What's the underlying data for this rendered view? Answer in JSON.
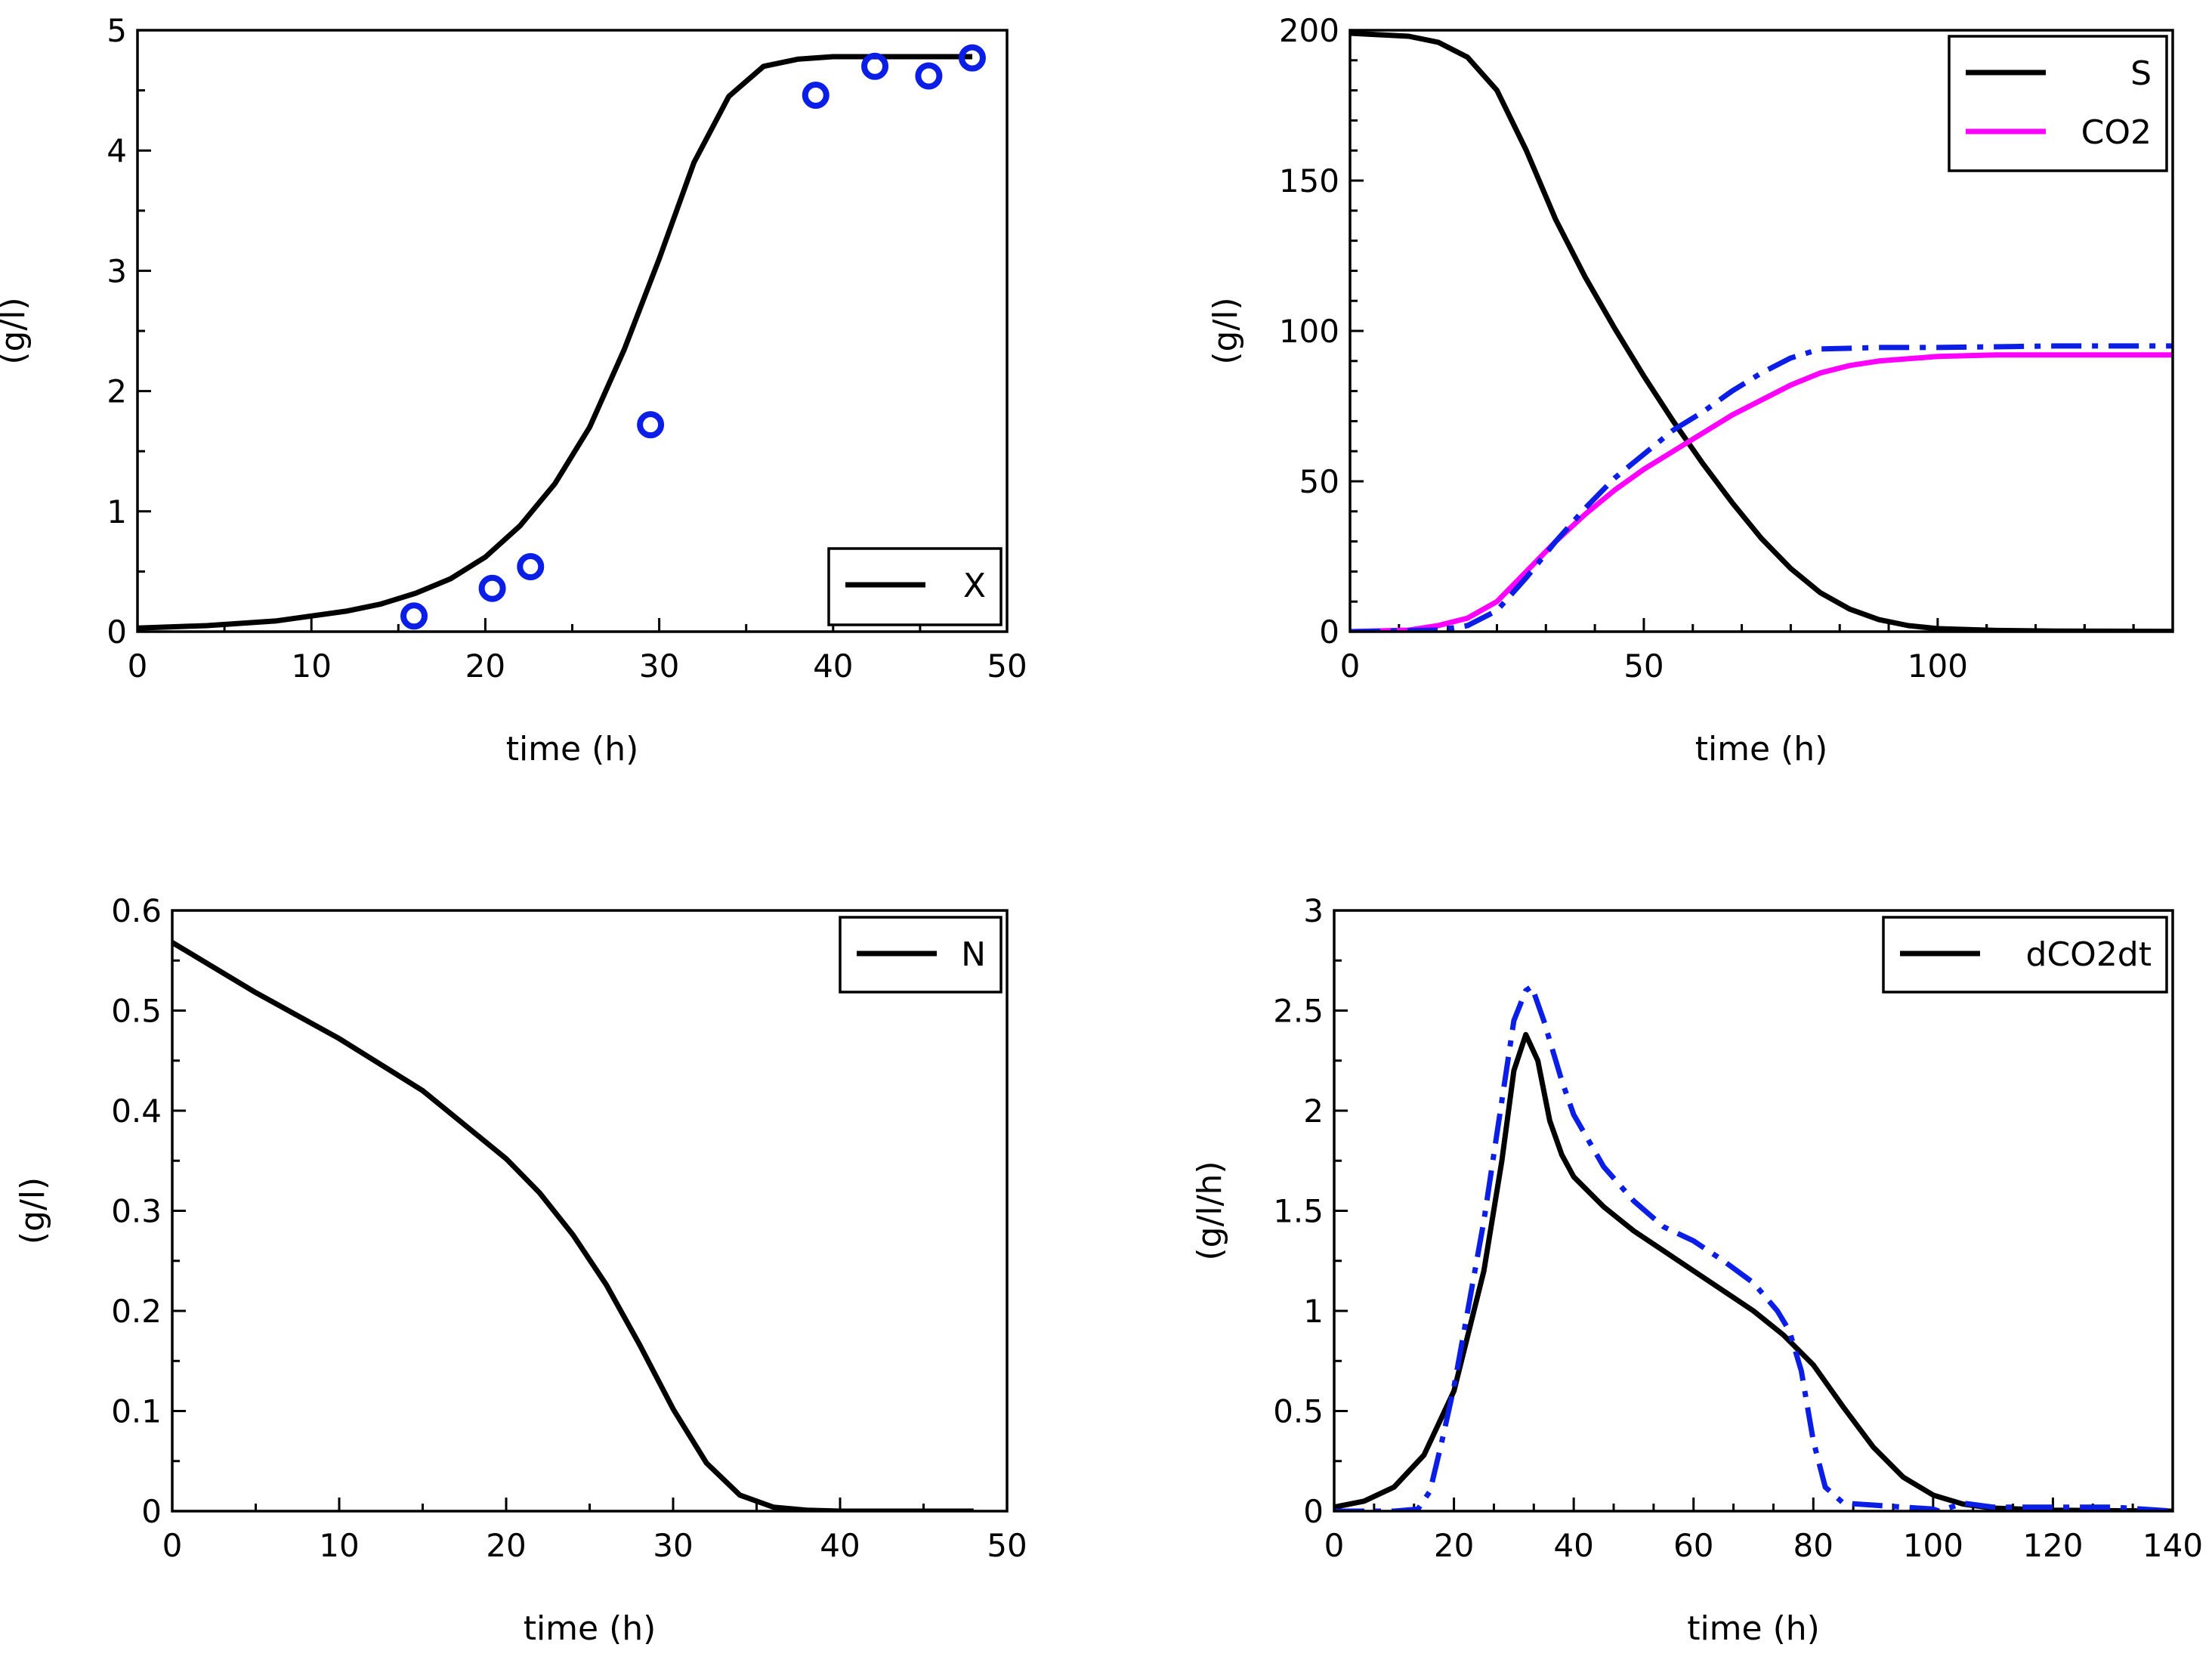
{
  "chart_data": [
    {
      "type": "line",
      "xlabel": "time (h)",
      "ylabel": "(g/l)",
      "xlim": [
        0,
        50
      ],
      "ylim": [
        0,
        5
      ],
      "xticks": [
        "0",
        "10",
        "20",
        "30",
        "40",
        "50"
      ],
      "yticks": [
        "0",
        "1",
        "2",
        "3",
        "4",
        "5"
      ],
      "legend_position": "bottom-right",
      "series": [
        {
          "name": "X",
          "kind": "line",
          "style": "solid",
          "color": "#000000",
          "x": [
            0,
            4,
            8,
            12,
            14,
            16,
            18,
            20,
            22,
            24,
            26,
            28,
            30,
            31,
            32,
            34,
            36,
            38,
            40,
            44,
            48
          ],
          "y": [
            0.03,
            0.05,
            0.09,
            0.17,
            0.23,
            0.32,
            0.44,
            0.62,
            0.88,
            1.23,
            1.7,
            2.35,
            3.1,
            3.5,
            3.9,
            4.45,
            4.7,
            4.76,
            4.78,
            4.78,
            4.78
          ]
        },
        {
          "kind": "markers",
          "color": "#0a1ee6",
          "x": [
            15.9,
            20.4,
            22.6,
            29.5,
            39.0,
            42.4,
            45.5,
            48.0
          ],
          "y": [
            0.13,
            0.36,
            0.54,
            1.72,
            4.46,
            4.7,
            4.62,
            4.77
          ]
        }
      ]
    },
    {
      "type": "line",
      "xlabel": "time (h)",
      "ylabel": "(g/l)",
      "xlim": [
        0,
        140
      ],
      "ylim": [
        0,
        200
      ],
      "xticks": [
        "0",
        "50",
        "100"
      ],
      "yticks": [
        "0",
        "50",
        "100",
        "150",
        "200"
      ],
      "legend_position": "top-right",
      "series": [
        {
          "name": "S",
          "kind": "line",
          "style": "solid",
          "color": "#000000",
          "x": [
            0,
            10,
            15,
            20,
            25,
            30,
            35,
            40,
            45,
            50,
            55,
            60,
            65,
            70,
            75,
            80,
            85,
            90,
            95,
            100,
            110,
            120,
            140
          ],
          "y": [
            199,
            198,
            196,
            191,
            180,
            160,
            137,
            118,
            101,
            85,
            70,
            56,
            43,
            31,
            21,
            13,
            7.5,
            4,
            2,
            1,
            0.4,
            0.2,
            0.1
          ]
        },
        {
          "name": "CO2",
          "kind": "line",
          "style": "solid",
          "color": "#ff00ff",
          "x": [
            0,
            10,
            15,
            20,
            25,
            30,
            35,
            40,
            45,
            50,
            55,
            60,
            65,
            70,
            75,
            80,
            85,
            90,
            100,
            110,
            120,
            140
          ],
          "y": [
            0,
            0.5,
            2,
            4.5,
            10,
            20,
            30,
            39,
            47,
            54,
            60,
            66,
            72,
            77,
            82,
            86,
            88.5,
            90,
            91.5,
            92,
            92,
            92
          ]
        },
        {
          "kind": "line",
          "style": "dashdot",
          "color": "#0a1ee6",
          "x": [
            0,
            15,
            20,
            25,
            30,
            35,
            40,
            45,
            50,
            55,
            60,
            65,
            70,
            75,
            80,
            90,
            100,
            120,
            140
          ],
          "y": [
            0,
            0.5,
            2,
            7,
            18,
            30,
            41,
            51,
            59,
            67,
            73,
            80,
            86,
            91,
            94,
            94.5,
            94.5,
            95,
            95
          ]
        }
      ]
    },
    {
      "type": "line",
      "xlabel": "time (h)",
      "ylabel": "(g/l)",
      "xlim": [
        0,
        50
      ],
      "ylim": [
        0,
        0.6
      ],
      "xticks": [
        "0",
        "10",
        "20",
        "30",
        "40",
        "50"
      ],
      "yticks": [
        "0",
        "0.1",
        "0.2",
        "0.3",
        "0.4",
        "0.5",
        "0.6"
      ],
      "legend_position": "top-right",
      "series": [
        {
          "name": "N",
          "kind": "line",
          "style": "solid",
          "color": "#000000",
          "x": [
            0,
            5,
            10,
            15,
            20,
            22,
            24,
            26,
            28,
            30,
            32,
            34,
            36,
            38,
            40,
            44,
            48
          ],
          "y": [
            0.568,
            0.518,
            0.472,
            0.42,
            0.352,
            0.318,
            0.276,
            0.226,
            0.166,
            0.102,
            0.048,
            0.016,
            0.004,
            0.001,
            0.0,
            0.0,
            0.0
          ]
        }
      ]
    },
    {
      "type": "line",
      "xlabel": "time (h)",
      "ylabel": "(g/l/h)",
      "xlim": [
        0,
        140
      ],
      "ylim": [
        0,
        3
      ],
      "xticks": [
        "0",
        "20",
        "40",
        "60",
        "80",
        "100",
        "120",
        "140"
      ],
      "yticks": [
        "0",
        "0.5",
        "1",
        "1.5",
        "2",
        "2.5",
        "3"
      ],
      "legend_position": "top-right",
      "series": [
        {
          "name": "dCO2dt",
          "kind": "line",
          "style": "solid",
          "color": "#000000",
          "x": [
            0,
            5,
            10,
            15,
            20,
            25,
            28,
            30,
            32,
            34,
            36,
            38,
            40,
            45,
            50,
            55,
            60,
            65,
            70,
            75,
            80,
            85,
            90,
            95,
            100,
            105,
            110,
            120,
            140
          ],
          "y": [
            0.02,
            0.05,
            0.12,
            0.28,
            0.6,
            1.2,
            1.75,
            2.2,
            2.38,
            2.25,
            1.95,
            1.78,
            1.67,
            1.52,
            1.4,
            1.3,
            1.2,
            1.1,
            1.0,
            0.88,
            0.73,
            0.52,
            0.32,
            0.17,
            0.08,
            0.035,
            0.015,
            0.005,
            0.0
          ]
        },
        {
          "kind": "line",
          "style": "dashdot",
          "color": "#0a1ee6",
          "x": [
            0,
            10,
            14,
            16,
            18,
            20,
            22,
            25,
            28,
            30,
            32,
            33,
            35,
            38,
            40,
            45,
            50,
            55,
            60,
            65,
            70,
            74,
            76,
            78,
            80,
            82,
            85,
            90,
            95,
            100,
            101,
            105,
            110,
            120,
            130,
            140
          ],
          "y": [
            0.0,
            0.0,
            0.01,
            0.1,
            0.35,
            0.62,
            0.95,
            1.45,
            2.05,
            2.45,
            2.6,
            2.62,
            2.45,
            2.15,
            1.98,
            1.72,
            1.55,
            1.42,
            1.35,
            1.25,
            1.14,
            1.0,
            0.9,
            0.7,
            0.35,
            0.12,
            0.04,
            0.03,
            0.02,
            0.01,
            0.0,
            0.04,
            0.02,
            0.02,
            0.02,
            0.0
          ]
        }
      ]
    }
  ]
}
